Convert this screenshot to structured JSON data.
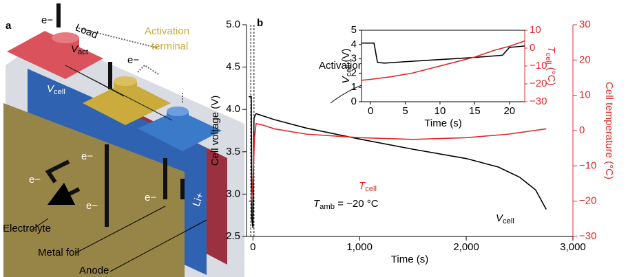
{
  "panel_a": {
    "label": "a",
    "load": "Load",
    "v_act": {
      "symbol": "V",
      "subscript": "act"
    },
    "activation_terminal": [
      "Activation",
      "terminal"
    ],
    "v_cell": {
      "symbol": "V",
      "subscript": "cell"
    },
    "electrons": [
      "e−",
      "e−",
      "e−",
      "e−",
      "e−",
      "e−"
    ],
    "li": "Li+",
    "electrolyte": "Electrolyte",
    "metal_foil": "Metal foil",
    "anode": "Anode"
  },
  "chart_data": [
    {
      "type": "line",
      "panel_label": "b",
      "xlabel": "Time (s)",
      "ylabel": "Cell voltage (V)",
      "y2label": "Cell temperature (°C)",
      "xlim": [
        -60,
        3000
      ],
      "xticks": [
        0,
        {
          "value": 1000,
          "label": "1,000"
        },
        {
          "value": 2000,
          "label": "2,000"
        },
        {
          "value": 3000,
          "label": "3,000"
        }
      ],
      "ylim": [
        2.5,
        5.0
      ],
      "yticks": [
        {
          "value": 2.5,
          "label": "2.5"
        },
        {
          "value": 3,
          "label": "3.0"
        },
        {
          "value": 3.5,
          "label": "3.5"
        },
        {
          "value": 4,
          "label": "4.0"
        },
        {
          "value": 4.5,
          "label": "4.5"
        },
        {
          "value": 5,
          "label": "5.0"
        }
      ],
      "y2lim": [
        -30,
        30
      ],
      "y2ticks": [
        {
          "value": -30,
          "label": "−30"
        },
        {
          "value": -20,
          "label": "−20"
        },
        {
          "value": -10,
          "label": "−10"
        },
        0,
        10,
        20,
        30
      ],
      "dashed_lines": [
        -20,
        10
      ],
      "series": [
        {
          "name": {
            "symbol": "V",
            "subscript": "cell"
          },
          "color": "#000000",
          "x": [
            -40,
            -15,
            -10,
            0,
            10,
            30,
            200,
            500,
            1000,
            1500,
            2000,
            2300,
            2500,
            2650,
            2750
          ],
          "values": [
            4.15,
            4.15,
            2.7,
            2.6,
            3.9,
            3.95,
            3.88,
            3.78,
            3.65,
            3.53,
            3.42,
            3.32,
            3.2,
            3.05,
            2.82
          ]
        },
        {
          "name": {
            "symbol": "T",
            "subscript": "cell"
          },
          "color": "#e02828",
          "axis": "y2",
          "x": [
            -40,
            -15,
            0,
            15,
            30,
            100,
            200,
            500,
            1000,
            1500,
            2000,
            2400,
            2750
          ],
          "values": [
            -20,
            -20,
            -15,
            -2,
            2,
            1.5,
            0.5,
            -1,
            -2,
            -2.5,
            -2,
            -1,
            0.5
          ]
        }
      ],
      "annotations": [
        "Activation",
        {
          "symbol": "T",
          "subscript": "amb",
          "rest": " = −20 °C"
        }
      ]
    },
    {
      "type": "line",
      "xlabel": "Time (s)",
      "ylabel": {
        "symbol": "V",
        "subscript": "cell",
        "rest": " (V)"
      },
      "y2label": {
        "symbol": "T",
        "subscript": "cell",
        "rest": " (°C)"
      },
      "xlim": [
        -1.3,
        22.2
      ],
      "xticks": [
        0,
        5,
        10,
        15,
        20
      ],
      "ylim": [
        0,
        5
      ],
      "yticks": [
        0,
        1,
        2,
        3,
        4,
        5
      ],
      "y2lim": [
        -30,
        10
      ],
      "y2ticks": [
        {
          "value": -30,
          "label": "−30"
        },
        {
          "value": -20,
          "label": "−20"
        },
        {
          "value": -10,
          "label": "−10"
        },
        0,
        10
      ],
      "series": [
        {
          "name": "V",
          "color": "#000000",
          "x": [
            -1.3,
            0.5,
            1,
            2,
            5,
            10,
            15,
            19,
            20,
            22.2
          ],
          "values": [
            4.1,
            4.1,
            2.75,
            2.7,
            2.8,
            2.95,
            3.1,
            3.25,
            3.8,
            3.9
          ]
        },
        {
          "name": "T",
          "color": "#e02828",
          "axis": "y2",
          "x": [
            -1.3,
            0,
            3,
            6,
            9,
            12,
            15,
            18,
            20,
            22.2
          ],
          "values": [
            -18,
            -17.5,
            -16,
            -14,
            -11,
            -8,
            -5,
            -1,
            1,
            4
          ]
        }
      ]
    }
  ]
}
